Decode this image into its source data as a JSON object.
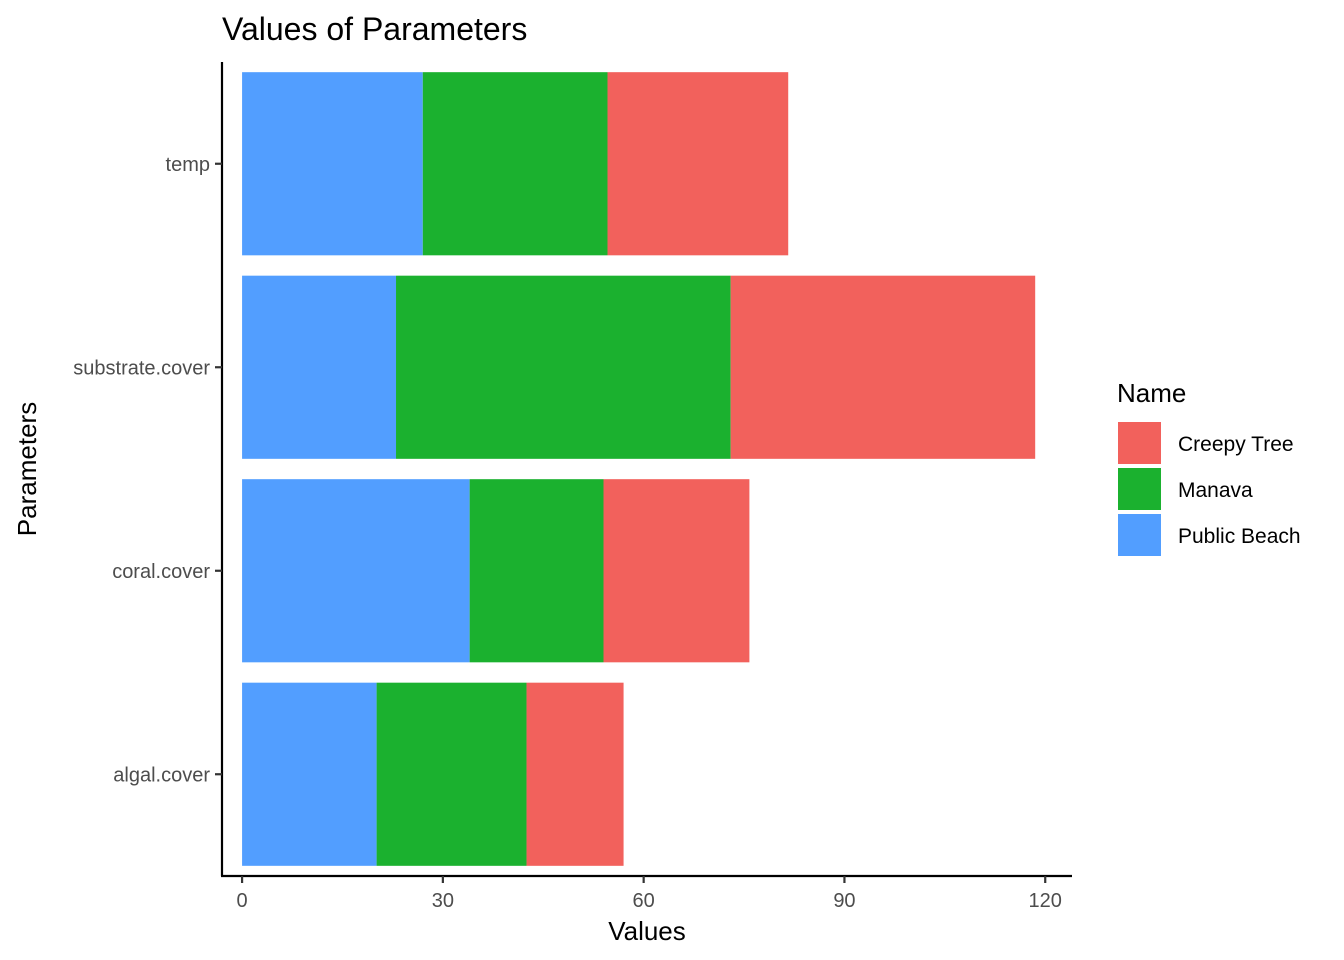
{
  "chart_data": {
    "type": "bar",
    "orientation": "horizontal",
    "stacked": true,
    "title": "Values of Parameters",
    "xlabel": "Values",
    "ylabel": "Parameters",
    "categories": [
      "algal.cover",
      "coral.cover",
      "substrate.cover",
      "temp"
    ],
    "series": [
      {
        "name": "Public Beach",
        "color": "#529EFF",
        "values": [
          20.1,
          34.0,
          23.0,
          27.0
        ]
      },
      {
        "name": "Manava",
        "color": "#1BB12F",
        "values": [
          22.4,
          20.0,
          50.0,
          27.6
        ]
      },
      {
        "name": "Creepy Tree",
        "color": "#F2615C",
        "values": [
          14.5,
          21.8,
          45.5,
          27.0
        ]
      }
    ],
    "xlim": [
      -3,
      124
    ],
    "xticks": [
      0,
      30,
      60,
      90,
      120
    ],
    "legend": {
      "title": "Name",
      "position": "right",
      "order": [
        "Creepy Tree",
        "Manava",
        "Public Beach"
      ]
    },
    "grid": false
  }
}
